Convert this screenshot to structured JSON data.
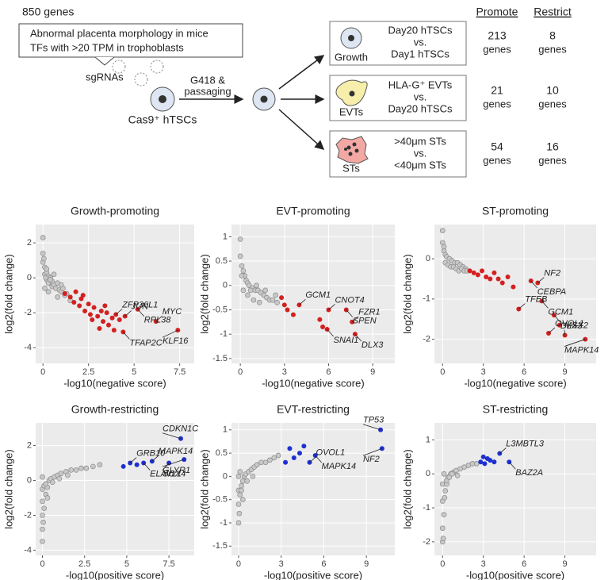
{
  "schematic": {
    "count": "850 genes",
    "criteria": [
      "Abnormal placenta morphology in mice",
      "TFs with >20 TPM in trophoblasts"
    ],
    "sgrna": "sgRNAs",
    "cells": "Cas9⁺ hTSCs",
    "selection": [
      "G418 &",
      "passaging"
    ],
    "headers": [
      "Promote",
      "Restrict"
    ],
    "unit": "genes",
    "rows": [
      {
        "name": "Growth",
        "comparison": [
          "Day20 hTSCs",
          "vs.",
          "Day1 hTSCs"
        ],
        "promote": "213",
        "restrict": "8"
      },
      {
        "name": "EVTs",
        "comparison": [
          "HLA-G⁺ EVTs",
          "vs.",
          "Day20 hTSCs"
        ],
        "promote": "21",
        "restrict": "10"
      },
      {
        "name": "STs",
        "comparison": [
          ">40μm STs",
          "vs.",
          "<40μm STs"
        ],
        "promote": "54",
        "restrict": "16"
      }
    ]
  },
  "chart_data": [
    {
      "type": "scatter",
      "title": "Growth-promoting",
      "x_label": "-log10(negative score)",
      "y_label": "log2(fold change)",
      "xlim": [
        -0.4,
        8.3
      ],
      "ylim": [
        -4.9,
        3.05
      ],
      "xticks": [
        0,
        2.5,
        5,
        7.5
      ],
      "yticks": [
        -4,
        -2,
        0,
        2
      ],
      "grid": true,
      "series": [
        {
          "color": "#c8c8c8",
          "x": [
            0,
            0,
            0,
            0.1,
            0.1,
            0.2,
            0.2,
            0.3,
            0.3,
            0.4,
            0.5,
            0.5,
            0.6,
            0.7,
            0.8,
            0.9,
            1.0,
            1.1,
            1.2,
            1.3,
            1.5,
            0.2,
            0.4,
            0.6,
            0.1,
            0.3,
            0.8,
            1.0,
            0.05,
            0.15
          ],
          "y": [
            2.3,
            1.4,
            0.9,
            0.6,
            0.2,
            0.3,
            -0.1,
            0.1,
            -0.3,
            0,
            -0.2,
            -0.5,
            -0.4,
            -0.6,
            -0.3,
            -0.7,
            -0.8,
            -0.6,
            -1.0,
            -0.9,
            -1.3,
            0.5,
            -0.1,
            0.2,
            -0.6,
            -0.8,
            -1.1,
            -0.4,
            1.1,
            0.0
          ]
        },
        {
          "color": "#d42020",
          "x": [
            1.2,
            1.5,
            1.7,
            1.8,
            2.0,
            2.1,
            2.3,
            2.5,
            2.6,
            2.8,
            3.0,
            3.2,
            3.3,
            3.5,
            3.6,
            3.8,
            4.0,
            4.2,
            2.2,
            2.7,
            3.1,
            3.4,
            3.9,
            4.4,
            4.5,
            5.2,
            6.2,
            7.4
          ],
          "y": [
            -0.9,
            -1.1,
            -1.4,
            -0.8,
            -1.6,
            -1.2,
            -1.9,
            -1.5,
            -2.1,
            -1.7,
            -2.2,
            -1.9,
            -2.5,
            -2.0,
            -2.7,
            -2.3,
            -2.1,
            -2.4,
            -1.0,
            -2.4,
            -2.9,
            -1.6,
            -3.0,
            -3.1,
            -2.2,
            -1.8,
            -2.5,
            -3.0
          ],
          "labels": [
            null,
            null,
            null,
            null,
            null,
            null,
            null,
            null,
            null,
            null,
            null,
            null,
            null,
            null,
            null,
            null,
            "ZFP36L1",
            null,
            null,
            null,
            null,
            null,
            null,
            "TFAP2C",
            "JUN",
            "RPL38",
            "MYC",
            "KLF16"
          ]
        }
      ]
    },
    {
      "type": "scatter",
      "title": "EVT-promoting",
      "x_label": "-log10(negative score)",
      "y_label": "log2(fold change)",
      "xlim": [
        -0.6,
        10.5
      ],
      "ylim": [
        -1.6,
        1.25
      ],
      "xticks": [
        0,
        3,
        6,
        9
      ],
      "yticks": [
        -1.5,
        -1,
        -0.5,
        0,
        0.5,
        1
      ],
      "grid": true,
      "series": [
        {
          "color": "#c8c8c8",
          "x": [
            0,
            0,
            0.1,
            0.2,
            0.3,
            0.4,
            0.5,
            0.6,
            0.8,
            1.0,
            1.2,
            1.4,
            1.6,
            1.8,
            2.0,
            2.2,
            2.5,
            0.2,
            0.5,
            0.9,
            1.3,
            0.1,
            0.7,
            1.1,
            1.7,
            2.4
          ],
          "y": [
            0.95,
            0.6,
            0.4,
            0.3,
            0.2,
            0.1,
            0.05,
            0,
            -0.05,
            -0.1,
            -0.1,
            -0.15,
            -0.2,
            -0.25,
            -0.3,
            -0.3,
            -0.35,
            -0.1,
            -0.2,
            -0.3,
            -0.35,
            0.2,
            -0.1,
            0,
            -0.1,
            -0.2
          ]
        },
        {
          "color": "#d42020",
          "x": [
            2.8,
            3.0,
            3.2,
            3.6,
            4.0,
            5.4,
            5.6,
            5.9,
            6.0,
            7.2,
            7.6,
            7.8
          ],
          "y": [
            -0.25,
            -0.4,
            -0.5,
            -0.6,
            -0.4,
            -0.7,
            -0.85,
            -0.9,
            -0.5,
            -0.5,
            -0.75,
            -1.0
          ],
          "labels": [
            null,
            null,
            null,
            null,
            "GCM1",
            null,
            null,
            "SNAI1",
            "CNOT4",
            "SPEN",
            "FZR1",
            "DLX3"
          ]
        }
      ]
    },
    {
      "type": "scatter",
      "title": "ST-promoting",
      "x_label": "-log10(negative score)",
      "y_label": "log2(fold change)",
      "xlim": [
        -0.6,
        11.3
      ],
      "ylim": [
        -2.6,
        0.85
      ],
      "xticks": [
        0,
        3,
        6,
        9
      ],
      "yticks": [
        -2,
        -1,
        0
      ],
      "grid": true,
      "series": [
        {
          "color": "#c8c8c8",
          "x": [
            0,
            0,
            0.1,
            0.2,
            0.3,
            0.5,
            0.7,
            0.9,
            1.1,
            1.3,
            1.5,
            1.7,
            0.2,
            0.4,
            0.6,
            0.8,
            1.0,
            1.2,
            1.4,
            1.6,
            1.8,
            0.1
          ],
          "y": [
            0.7,
            0.4,
            0.2,
            0.1,
            0.05,
            0,
            -0.05,
            -0.1,
            -0.1,
            -0.15,
            -0.2,
            -0.25,
            -0.1,
            -0.15,
            -0.2,
            -0.2,
            -0.25,
            -0.3,
            -0.25,
            -0.3,
            -0.3,
            0.3
          ]
        },
        {
          "color": "#d42020",
          "x": [
            2.0,
            2.3,
            2.6,
            2.9,
            3.2,
            3.5,
            3.8,
            4.1,
            4.4,
            4.8,
            5.2,
            5.6,
            6.5,
            7.0,
            7.3,
            7.8,
            8.2,
            8.6,
            9.0,
            10.5
          ],
          "y": [
            -0.3,
            -0.35,
            -0.4,
            -0.3,
            -0.45,
            -0.5,
            -0.35,
            -0.5,
            -0.6,
            -0.45,
            -0.7,
            -1.25,
            -0.55,
            -0.6,
            -1.05,
            -1.85,
            -1.4,
            -1.65,
            -1.9,
            -2.0
          ],
          "labels": [
            null,
            null,
            null,
            null,
            null,
            null,
            null,
            null,
            null,
            null,
            null,
            "TFEB",
            "CEBPA",
            "NF2",
            "GCM1",
            "OVOL1",
            "DLX3",
            null,
            "MSX2",
            "MAPK14"
          ]
        }
      ]
    },
    {
      "type": "scatter",
      "title": "Growth-restricting",
      "x_label": "-log10(positive score)",
      "y_label": "log2(fold change)",
      "xlim": [
        -0.4,
        9
      ],
      "ylim": [
        -4.3,
        3.3
      ],
      "xticks": [
        0,
        2.5,
        5,
        7.5
      ],
      "yticks": [
        -4,
        -2,
        0,
        2
      ],
      "grid": true,
      "series": [
        {
          "color": "#c8c8c8",
          "x": [
            0,
            0,
            0,
            0,
            0,
            0,
            0.1,
            0.1,
            0.2,
            0.3,
            0.4,
            0.5,
            0.7,
            0.9,
            1.1,
            1.4,
            1.7,
            2.0,
            2.3,
            2.6,
            3.0,
            3.4,
            0.2,
            0.6,
            1.0,
            1.5,
            0.05,
            0.3
          ],
          "y": [
            -3.5,
            -2.8,
            -2.0,
            -1.2,
            -0.5,
            0.2,
            -1.6,
            -0.3,
            -0.8,
            -0.4,
            0,
            0.1,
            0.2,
            0.3,
            0.4,
            0.5,
            0.6,
            0.6,
            0.7,
            0.7,
            0.8,
            0.9,
            -0.2,
            -0.1,
            0.1,
            0.3,
            -2.4,
            -1.0
          ]
        },
        {
          "color": "#1f30d0",
          "x": [
            4.8,
            5.2,
            5.6,
            6.0,
            6.5,
            7.5,
            8.2,
            8.4
          ],
          "y": [
            0.8,
            1.0,
            0.9,
            1.0,
            1.1,
            1.0,
            2.4,
            1.2
          ],
          "labels": [
            null,
            "GRB10",
            null,
            "ELAVL1",
            "MAPK14",
            "SOX4",
            "CDKN1C",
            "GLYR1"
          ]
        }
      ]
    },
    {
      "type": "scatter",
      "title": "EVT-restricting",
      "x_label": "-log10(positive score)",
      "y_label": "log2(fold change)",
      "xlim": [
        -0.5,
        11
      ],
      "ylim": [
        -1.7,
        1.15
      ],
      "xticks": [
        0,
        3,
        6,
        9
      ],
      "yticks": [
        -1.5,
        -1,
        -0.5,
        0,
        0.5,
        1
      ],
      "grid": true,
      "series": [
        {
          "color": "#c8c8c8",
          "x": [
            0,
            0,
            0,
            0,
            0.1,
            0.1,
            0.2,
            0.3,
            0.4,
            0.5,
            0.7,
            0.9,
            1.1,
            1.3,
            1.6,
            1.9,
            2.2,
            2.5,
            2.8,
            0.2,
            0.6,
            1.0,
            0.05,
            0.3
          ],
          "y": [
            -1.0,
            -0.6,
            -0.3,
            0,
            -0.4,
            0.1,
            -0.2,
            -0.1,
            0,
            0.05,
            0.1,
            0.15,
            0.2,
            0.25,
            0.3,
            0.3,
            0.35,
            0.4,
            0.45,
            -0.3,
            -0.1,
            0,
            -0.8,
            -0.5
          ]
        },
        {
          "color": "#1f30d0",
          "x": [
            3.3,
            3.6,
            3.9,
            4.3,
            4.6,
            5.0,
            5.4,
            10.0,
            10.1
          ],
          "y": [
            0.3,
            0.6,
            0.4,
            0.5,
            0.65,
            0.3,
            0.45,
            1.0,
            0.6
          ],
          "labels": [
            null,
            null,
            null,
            null,
            null,
            "OVOL1",
            "MAPK14",
            "TP53",
            "NF2"
          ]
        }
      ]
    },
    {
      "type": "scatter",
      "title": "ST-restricting",
      "x_label": "-log10(positive score)",
      "y_label": "log2(fold change)",
      "xlim": [
        -0.6,
        11.3
      ],
      "ylim": [
        -2.4,
        1.5
      ],
      "xticks": [
        0,
        3,
        6,
        9
      ],
      "yticks": [
        -2,
        -1,
        0,
        1
      ],
      "grid": true,
      "series": [
        {
          "color": "#c8c8c8",
          "x": [
            0,
            0,
            0,
            0,
            0.1,
            0.2,
            0.3,
            0.4,
            0.6,
            0.8,
            1.0,
            1.3,
            1.6,
            1.9,
            2.2,
            2.5,
            0.1,
            0.3,
            0.5,
            0.7,
            0.05,
            0.15,
            1.1
          ],
          "y": [
            -2.0,
            -1.6,
            -0.8,
            -0.3,
            -1.2,
            -0.5,
            -0.3,
            -0.1,
            0,
            0.05,
            0.1,
            0.15,
            0.2,
            0.25,
            0.3,
            0.3,
            0,
            -0.2,
            -0.1,
            0,
            -1.9,
            -0.7,
            -0.05
          ]
        },
        {
          "color": "#1f30d0",
          "x": [
            2.8,
            3.0,
            3.1,
            3.3,
            3.5,
            3.8,
            4.2,
            4.9
          ],
          "y": [
            0.35,
            0.5,
            0.3,
            0.45,
            0.4,
            0.35,
            0.6,
            0.35
          ],
          "labels": [
            null,
            null,
            null,
            null,
            null,
            null,
            "L3MBTL3",
            "BAZ2A"
          ]
        }
      ]
    }
  ]
}
